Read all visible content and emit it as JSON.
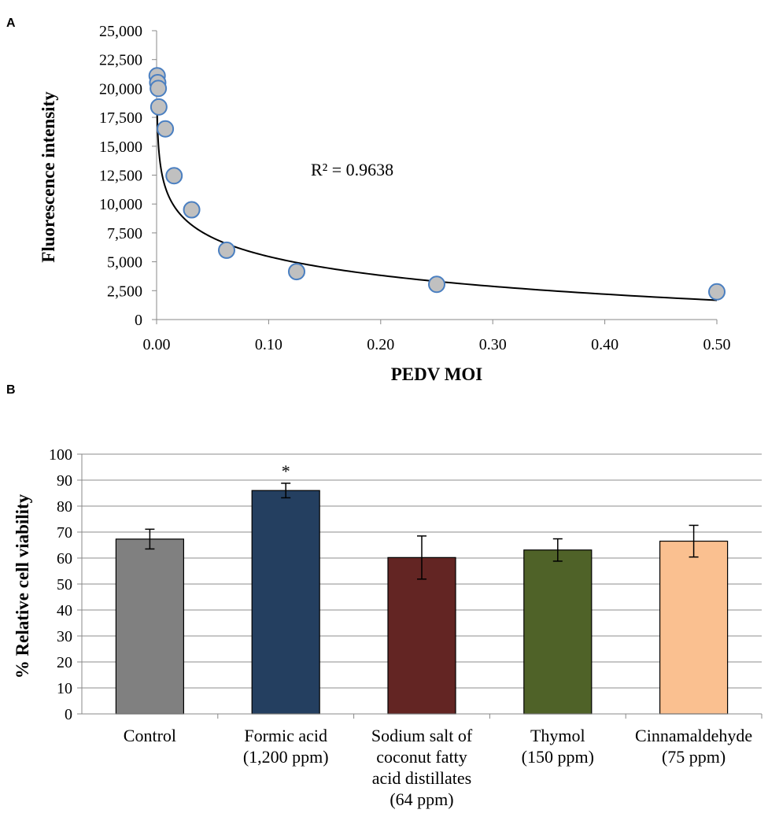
{
  "chart_data": [
    {
      "panel": "A",
      "type": "scatter",
      "title": "",
      "xlabel": "PEDV MOI",
      "ylabel": "Fluorescence intensity",
      "xlim": [
        0,
        0.5
      ],
      "ylim": [
        0,
        25000
      ],
      "x_ticks": [
        "0.00",
        "0.10",
        "0.20",
        "0.30",
        "0.40",
        "0.50"
      ],
      "y_ticks": [
        "0",
        "2,500",
        "5,000",
        "7,500",
        "10,000",
        "12,500",
        "15,000",
        "17,500",
        "20,000",
        "22,500",
        "25,000"
      ],
      "points": [
        {
          "x": 0.0005,
          "y": 21100
        },
        {
          "x": 0.001,
          "y": 20500
        },
        {
          "x": 0.0015,
          "y": 20000
        },
        {
          "x": 0.002,
          "y": 18400
        },
        {
          "x": 0.0078,
          "y": 16500
        },
        {
          "x": 0.0156,
          "y": 12450
        },
        {
          "x": 0.0313,
          "y": 9500
        },
        {
          "x": 0.0625,
          "y": 6000
        },
        {
          "x": 0.125,
          "y": 4150
        },
        {
          "x": 0.25,
          "y": 3050
        },
        {
          "x": 0.5,
          "y": 2400
        }
      ],
      "trendline": {
        "type": "logarithmic",
        "a": -2350,
        "b": 44
      },
      "annotation": "R² = 0.9638",
      "grid": false,
      "marker_fill": "#c0c0c0",
      "marker_edge": "#4a7fc1"
    },
    {
      "panel": "B",
      "type": "bar",
      "title": "",
      "xlabel": "",
      "ylabel": "% Relative cell  viability",
      "ylim": [
        0,
        100
      ],
      "y_ticks": [
        "0",
        "10",
        "20",
        "30",
        "40",
        "50",
        "60",
        "70",
        "80",
        "90",
        "100"
      ],
      "categories": [
        [
          "Control"
        ],
        [
          "Formic acid",
          "(1,200 ppm)"
        ],
        [
          "Sodium salt of",
          "coconut fatty",
          "acid distillates",
          "(64 ppm)"
        ],
        [
          "Thymol",
          "(150 ppm)"
        ],
        [
          "Cinnamaldehyde",
          "(75 ppm)"
        ]
      ],
      "values": [
        67.3,
        86.0,
        60.2,
        63.1,
        66.5
      ],
      "errors": [
        3.8,
        2.8,
        8.3,
        4.3,
        6.1
      ],
      "colors": [
        "#808080",
        "#243f60",
        "#632523",
        "#4f6228",
        "#fac090"
      ],
      "significance": [
        "",
        "*",
        "",
        "",
        ""
      ],
      "grid": true
    }
  ],
  "panels": {
    "a": "A",
    "b": "B"
  }
}
